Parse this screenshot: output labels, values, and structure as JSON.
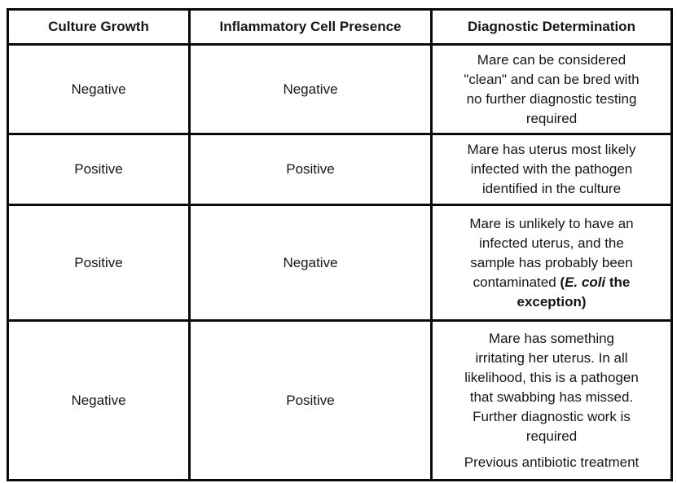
{
  "table": {
    "headers": [
      "Culture Growth",
      "Inflammatory Cell Presence",
      "Diagnostic Determination"
    ],
    "rows": [
      {
        "culture_growth": "Negative",
        "inflammatory_cell_presence": "Negative",
        "diagnostic_determination": [
          [
            {
              "t": "Mare can be considered\n\"clean\" and can be bred with\nno further diagnostic testing\nrequired"
            }
          ]
        ]
      },
      {
        "culture_growth": "Positive",
        "inflammatory_cell_presence": "Positive",
        "diagnostic_determination": [
          [
            {
              "t": "Mare has uterus most likely\ninfected with the pathogen\nidentified in the culture"
            }
          ]
        ]
      },
      {
        "culture_growth": "Positive",
        "inflammatory_cell_presence": "Negative",
        "diagnostic_determination": [
          [
            {
              "t": "Mare is unlikely to have an\ninfected uterus, and the\nsample has probably been\ncontaminated ("
            },
            {
              "t": "(",
              "b": true
            },
            {
              "t": "E. coli",
              "b": true,
              "i": true
            },
            {
              "t": " the\nexception)",
              "b": true
            }
          ]
        ]
      },
      {
        "culture_growth": "Negative",
        "inflammatory_cell_presence": "Positive",
        "diagnostic_determination": [
          [
            {
              "t": "Mare has something\nirritating her uterus. In all\nlikelihood, this is a pathogen\nthat swabbing has missed.\nFurther diagnostic work is\nrequired"
            }
          ],
          [
            {
              "t": "Previous antibiotic treatment"
            }
          ]
        ]
      }
    ],
    "colors": {
      "border": "#0a0a0a",
      "text": "#161616",
      "background": "#ffffff"
    }
  }
}
